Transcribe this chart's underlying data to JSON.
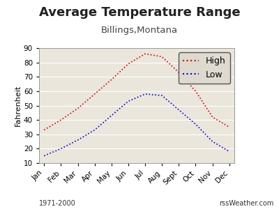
{
  "title": "Average Temperature Range",
  "subtitle": "Billings,Montana",
  "ylabel": "Fahrenheit",
  "months": [
    "Jan",
    "Feb",
    "Mar",
    "Apr",
    "May",
    "Jun",
    "Jul",
    "Aug",
    "Sept",
    "Oct",
    "Nov",
    "Dec"
  ],
  "high": [
    33,
    40,
    48,
    58,
    68,
    79,
    86,
    84,
    73,
    60,
    42,
    35
  ],
  "low": [
    15,
    20,
    26,
    33,
    43,
    53,
    58,
    57,
    47,
    37,
    25,
    18
  ],
  "high_color": "#cc0000",
  "low_color": "#0000cc",
  "ylim": [
    10,
    90
  ],
  "yticks": [
    10,
    20,
    30,
    40,
    50,
    60,
    70,
    80,
    90
  ],
  "bg_color": "#eae6dc",
  "outer_bg": "#ffffff",
  "legend_bg": "#dedad0",
  "footer_left": "1971-2000",
  "footer_right": "rssWeather.com",
  "title_fontsize": 13,
  "subtitle_fontsize": 9.5,
  "axis_label_fontsize": 8,
  "tick_fontsize": 7.5,
  "footer_fontsize": 7,
  "legend_fontsize": 9
}
